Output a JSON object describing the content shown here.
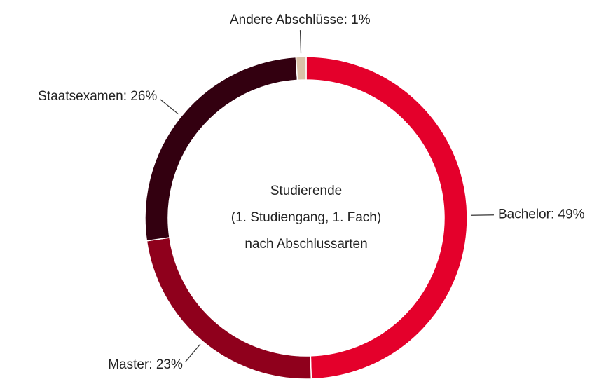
{
  "chart_data": {
    "type": "donut",
    "title": [
      "Studierende",
      "(1. Studiengang, 1. Fach)",
      "nach Abschlussarten"
    ],
    "values": [
      49,
      23,
      26,
      1
    ],
    "value_labels": [
      "Bachelor: 49%",
      "Master: 23%",
      "Staatsexamen: 26%",
      "Andere Abschlüsse: 1%"
    ],
    "colors": [
      "#e4002b",
      "#8f001c",
      "#330010",
      "#d9c2a8"
    ]
  }
}
